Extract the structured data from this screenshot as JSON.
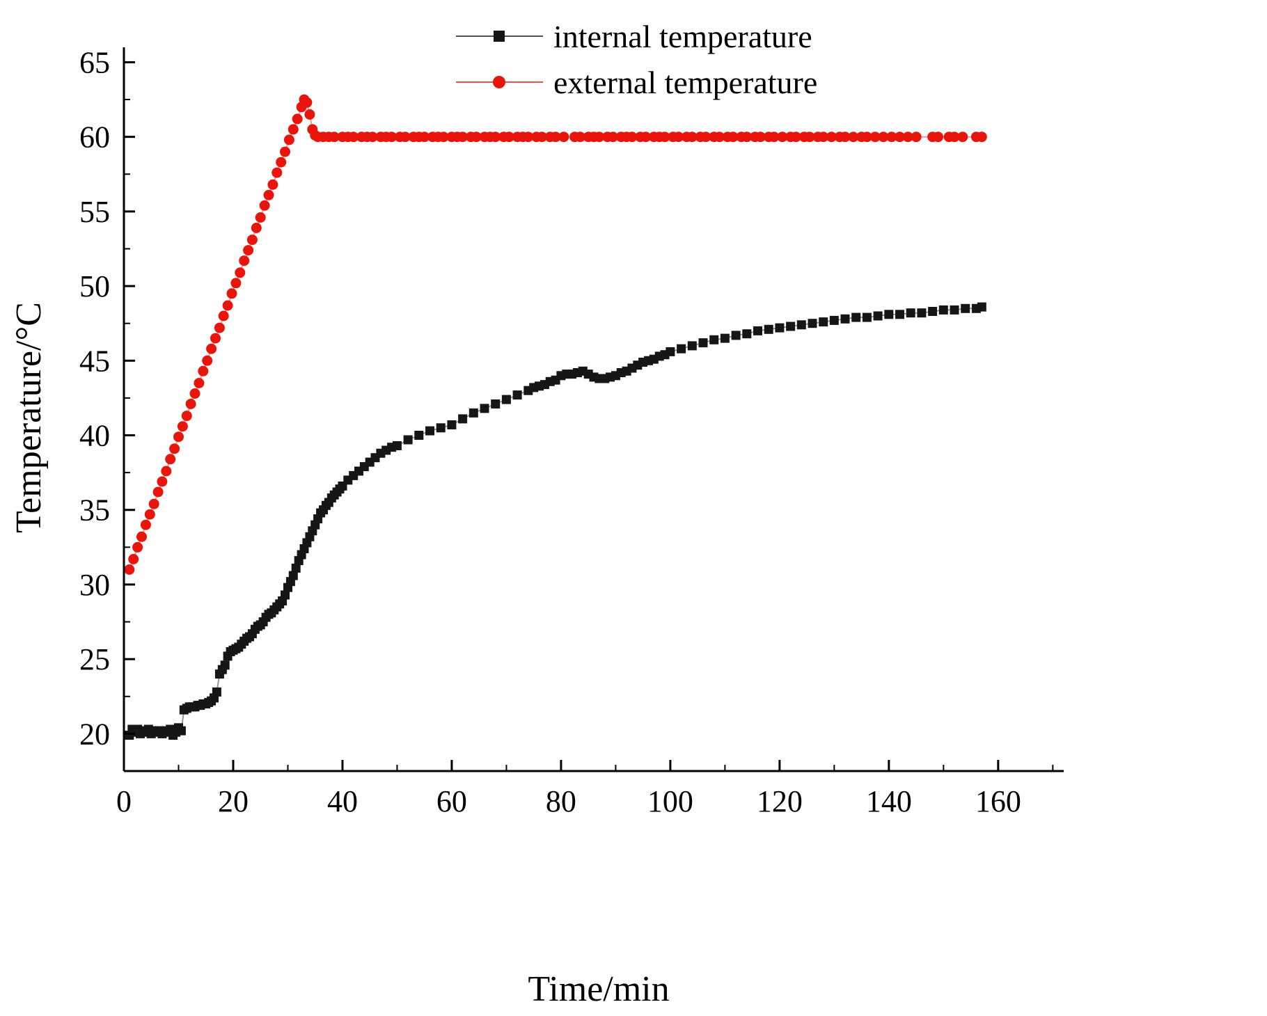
{
  "figure": {
    "background": "#ffffff"
  },
  "chart_data": {
    "type": "scatter",
    "title": "",
    "xlabel": "Time/min",
    "ylabel": "Temperature/°C",
    "xlim": [
      0,
      172
    ],
    "ylim": [
      17.5,
      66
    ],
    "xticks": [
      0,
      20,
      40,
      60,
      80,
      100,
      120,
      140,
      160
    ],
    "yticks": [
      20,
      25,
      30,
      35,
      40,
      45,
      50,
      55,
      60,
      65
    ],
    "x_minor_step": 10,
    "y_minor_step": 2.5,
    "grid": false,
    "legend": {
      "position": "top-center"
    },
    "series": [
      {
        "name": "internal temperature",
        "slug": "internal-temperature",
        "color": "#161616",
        "marker": "square",
        "marker_size": 13,
        "points": [
          [
            1,
            19.9
          ],
          [
            1.5,
            20.3
          ],
          [
            2,
            20.1
          ],
          [
            2.5,
            20.3
          ],
          [
            3,
            20.0
          ],
          [
            3.5,
            20.2
          ],
          [
            4,
            20.1
          ],
          [
            4.5,
            20.3
          ],
          [
            5,
            20.0
          ],
          [
            5.5,
            20.2
          ],
          [
            6,
            20.1
          ],
          [
            6.5,
            20.2
          ],
          [
            7,
            20.0
          ],
          [
            7.5,
            20.2
          ],
          [
            8,
            20.1
          ],
          [
            8.5,
            20.3
          ],
          [
            9,
            19.9
          ],
          [
            9.5,
            20.1
          ],
          [
            10,
            20.4
          ],
          [
            10.5,
            20.2
          ],
          [
            11,
            21.6
          ],
          [
            11.5,
            21.7
          ],
          [
            12,
            21.8
          ],
          [
            12.5,
            21.8
          ],
          [
            13,
            21.8
          ],
          [
            13.5,
            21.9
          ],
          [
            14,
            21.9
          ],
          [
            14.5,
            22.0
          ],
          [
            15,
            22.0
          ],
          [
            15.5,
            22.1
          ],
          [
            16,
            22.2
          ],
          [
            16.5,
            22.4
          ],
          [
            17,
            22.8
          ],
          [
            17.5,
            24.0
          ],
          [
            18,
            24.3
          ],
          [
            18.5,
            24.6
          ],
          [
            19,
            25.2
          ],
          [
            19.5,
            25.5
          ],
          [
            20,
            25.6
          ],
          [
            20.5,
            25.7
          ],
          [
            21,
            25.8
          ],
          [
            21.5,
            26.0
          ],
          [
            22,
            26.2
          ],
          [
            22.5,
            26.4
          ],
          [
            23,
            26.5
          ],
          [
            23.5,
            26.7
          ],
          [
            24,
            27.0
          ],
          [
            24.5,
            27.2
          ],
          [
            25,
            27.3
          ],
          [
            25.5,
            27.5
          ],
          [
            26,
            27.8
          ],
          [
            26.5,
            28.0
          ],
          [
            27,
            28.1
          ],
          [
            27.5,
            28.3
          ],
          [
            28,
            28.5
          ],
          [
            28.5,
            28.7
          ],
          [
            29,
            28.9
          ],
          [
            29.5,
            29.3
          ],
          [
            30,
            29.8
          ],
          [
            30.5,
            30.2
          ],
          [
            31,
            30.6
          ],
          [
            31.5,
            31.1
          ],
          [
            32,
            31.6
          ],
          [
            32.5,
            32.0
          ],
          [
            33,
            32.4
          ],
          [
            33.5,
            32.8
          ],
          [
            34,
            33.2
          ],
          [
            34.5,
            33.6
          ],
          [
            35,
            34.0
          ],
          [
            35.5,
            34.4
          ],
          [
            36,
            34.8
          ],
          [
            36.5,
            35.0
          ],
          [
            37,
            35.3
          ],
          [
            37.5,
            35.5
          ],
          [
            38,
            35.8
          ],
          [
            38.5,
            36.0
          ],
          [
            39,
            36.2
          ],
          [
            39.5,
            36.4
          ],
          [
            40,
            36.6
          ],
          [
            41,
            37.0
          ],
          [
            42,
            37.3
          ],
          [
            43,
            37.6
          ],
          [
            44,
            37.9
          ],
          [
            45,
            38.2
          ],
          [
            46,
            38.5
          ],
          [
            47,
            38.8
          ],
          [
            48,
            39.0
          ],
          [
            49,
            39.2
          ],
          [
            50,
            39.3
          ],
          [
            52,
            39.7
          ],
          [
            54,
            40.0
          ],
          [
            56,
            40.3
          ],
          [
            58,
            40.5
          ],
          [
            60,
            40.7
          ],
          [
            62,
            41.1
          ],
          [
            64,
            41.5
          ],
          [
            66,
            41.8
          ],
          [
            68,
            42.1
          ],
          [
            70,
            42.4
          ],
          [
            72,
            42.7
          ],
          [
            74,
            43.0
          ],
          [
            75,
            43.2
          ],
          [
            76,
            43.3
          ],
          [
            77,
            43.4
          ],
          [
            78,
            43.6
          ],
          [
            79,
            43.7
          ],
          [
            80,
            44.0
          ],
          [
            81,
            44.1
          ],
          [
            82,
            44.1
          ],
          [
            83,
            44.2
          ],
          [
            84,
            44.3
          ],
          [
            85,
            44.1
          ],
          [
            86,
            43.9
          ],
          [
            87,
            43.8
          ],
          [
            88,
            43.8
          ],
          [
            89,
            43.9
          ],
          [
            90,
            44.0
          ],
          [
            91,
            44.2
          ],
          [
            92,
            44.3
          ],
          [
            93,
            44.5
          ],
          [
            94,
            44.7
          ],
          [
            95,
            44.9
          ],
          [
            96,
            45.0
          ],
          [
            97,
            45.1
          ],
          [
            98,
            45.3
          ],
          [
            99,
            45.4
          ],
          [
            100,
            45.6
          ],
          [
            102,
            45.8
          ],
          [
            104,
            46.0
          ],
          [
            106,
            46.2
          ],
          [
            108,
            46.4
          ],
          [
            110,
            46.5
          ],
          [
            112,
            46.7
          ],
          [
            114,
            46.8
          ],
          [
            116,
            47.0
          ],
          [
            118,
            47.1
          ],
          [
            120,
            47.2
          ],
          [
            122,
            47.3
          ],
          [
            124,
            47.4
          ],
          [
            126,
            47.5
          ],
          [
            128,
            47.6
          ],
          [
            130,
            47.7
          ],
          [
            132,
            47.8
          ],
          [
            134,
            47.9
          ],
          [
            136,
            47.9
          ],
          [
            138,
            48.0
          ],
          [
            140,
            48.1
          ],
          [
            142,
            48.1
          ],
          [
            144,
            48.2
          ],
          [
            146,
            48.2
          ],
          [
            148,
            48.3
          ],
          [
            150,
            48.4
          ],
          [
            152,
            48.4
          ],
          [
            154,
            48.5
          ],
          [
            156,
            48.5
          ],
          [
            157,
            48.6
          ]
        ]
      },
      {
        "name": "external temperature",
        "slug": "external-temperature",
        "color": "#e8150d",
        "marker": "circle",
        "marker_size": 15,
        "points": [
          [
            1,
            31.0
          ],
          [
            1.75,
            31.7
          ],
          [
            2.5,
            32.5
          ],
          [
            3.25,
            33.2
          ],
          [
            4,
            34.0
          ],
          [
            4.75,
            34.7
          ],
          [
            5.5,
            35.4
          ],
          [
            6.25,
            36.2
          ],
          [
            7,
            36.9
          ],
          [
            7.75,
            37.6
          ],
          [
            8.5,
            38.4
          ],
          [
            9.25,
            39.1
          ],
          [
            10,
            39.9
          ],
          [
            10.75,
            40.6
          ],
          [
            11.5,
            41.3
          ],
          [
            12.25,
            42.1
          ],
          [
            13,
            42.8
          ],
          [
            13.75,
            43.5
          ],
          [
            14.5,
            44.3
          ],
          [
            15.25,
            45.0
          ],
          [
            16,
            45.8
          ],
          [
            16.75,
            46.5
          ],
          [
            17.5,
            47.2
          ],
          [
            18.25,
            48.0
          ],
          [
            19,
            48.7
          ],
          [
            19.75,
            49.5
          ],
          [
            20.5,
            50.2
          ],
          [
            21.25,
            50.9
          ],
          [
            22,
            51.7
          ],
          [
            22.75,
            52.4
          ],
          [
            23.5,
            53.1
          ],
          [
            24.25,
            53.9
          ],
          [
            25,
            54.6
          ],
          [
            25.75,
            55.4
          ],
          [
            26.5,
            56.1
          ],
          [
            27.25,
            56.8
          ],
          [
            28,
            57.6
          ],
          [
            28.75,
            58.3
          ],
          [
            29.5,
            59.0
          ],
          [
            30.25,
            59.8
          ],
          [
            31,
            60.5
          ],
          [
            31.75,
            61.2
          ],
          [
            32.5,
            62.0
          ],
          [
            33,
            62.5
          ],
          [
            33.5,
            62.3
          ],
          [
            34,
            61.5
          ],
          [
            34.5,
            60.5
          ],
          [
            35,
            60.1
          ],
          [
            35.5,
            60.0
          ],
          [
            36.5,
            60.0
          ],
          [
            37.5,
            60.0
          ],
          [
            38.5,
            60.0
          ],
          [
            40,
            60.0
          ],
          [
            41,
            60.0
          ],
          [
            42,
            60.0
          ],
          [
            43.5,
            60.0
          ],
          [
            44.5,
            60.0
          ],
          [
            45.5,
            60.0
          ],
          [
            47,
            60.0
          ],
          [
            48,
            60.0
          ],
          [
            49,
            60.0
          ],
          [
            50.5,
            60.0
          ],
          [
            51.5,
            60.0
          ],
          [
            53,
            60.0
          ],
          [
            54,
            60.0
          ],
          [
            55,
            60.0
          ],
          [
            56.5,
            60.0
          ],
          [
            57.5,
            60.0
          ],
          [
            58.5,
            60.0
          ],
          [
            60,
            60.0
          ],
          [
            61,
            60.0
          ],
          [
            62,
            60.0
          ],
          [
            63.5,
            60.0
          ],
          [
            64.5,
            60.0
          ],
          [
            66,
            60.0
          ],
          [
            67,
            60.0
          ],
          [
            68,
            60.0
          ],
          [
            69.5,
            60.0
          ],
          [
            70.5,
            60.0
          ],
          [
            72,
            60.0
          ],
          [
            73,
            60.0
          ],
          [
            74,
            60.0
          ],
          [
            75.5,
            60.0
          ],
          [
            76.5,
            60.0
          ],
          [
            78,
            60.0
          ],
          [
            79,
            60.0
          ],
          [
            80.5,
            60.0
          ],
          [
            82.5,
            60.0
          ],
          [
            83.5,
            60.0
          ],
          [
            85,
            60.0
          ],
          [
            86,
            60.0
          ],
          [
            87,
            60.0
          ],
          [
            88.5,
            60.0
          ],
          [
            89.5,
            60.0
          ],
          [
            91,
            60.0
          ],
          [
            92,
            60.0
          ],
          [
            93,
            60.0
          ],
          [
            94.5,
            60.0
          ],
          [
            95.5,
            60.0
          ],
          [
            97,
            60.0
          ],
          [
            98,
            60.0
          ],
          [
            99,
            60.0
          ],
          [
            100.5,
            60.0
          ],
          [
            101.5,
            60.0
          ],
          [
            103,
            60.0
          ],
          [
            104,
            60.0
          ],
          [
            105.5,
            60.0
          ],
          [
            106.5,
            60.0
          ],
          [
            108,
            60.0
          ],
          [
            109,
            60.0
          ],
          [
            110.5,
            60.0
          ],
          [
            111.5,
            60.0
          ],
          [
            113,
            60.0
          ],
          [
            114,
            60.0
          ],
          [
            115.5,
            60.0
          ],
          [
            116.5,
            60.0
          ],
          [
            118,
            60.0
          ],
          [
            119,
            60.0
          ],
          [
            120.5,
            60.0
          ],
          [
            122,
            60.0
          ],
          [
            123,
            60.0
          ],
          [
            124.5,
            60.0
          ],
          [
            125.5,
            60.0
          ],
          [
            127,
            60.0
          ],
          [
            128,
            60.0
          ],
          [
            129.5,
            60.0
          ],
          [
            131,
            60.0
          ],
          [
            132,
            60.0
          ],
          [
            133.5,
            60.0
          ],
          [
            135,
            60.0
          ],
          [
            136,
            60.0
          ],
          [
            137.5,
            60.0
          ],
          [
            139,
            60.0
          ],
          [
            140.5,
            60.0
          ],
          [
            142,
            60.0
          ],
          [
            143.5,
            60.0
          ],
          [
            145,
            60.0
          ],
          [
            148,
            60.0
          ],
          [
            149,
            60.0
          ],
          [
            151,
            60.0
          ],
          [
            152,
            60.0
          ],
          [
            153.5,
            60.0
          ],
          [
            156,
            60.0
          ],
          [
            157,
            60.0
          ]
        ]
      }
    ]
  }
}
